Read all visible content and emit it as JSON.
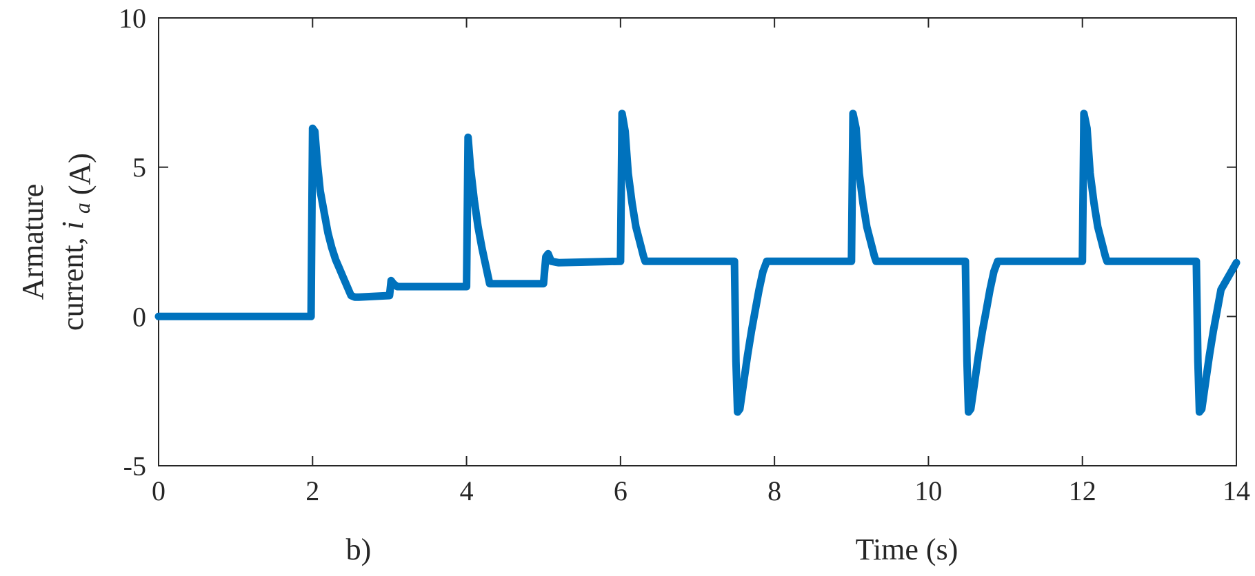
{
  "chart_data": {
    "type": "line",
    "panel_label": "b)",
    "title": "",
    "xlabel": "Time (s)",
    "ylabel_line1": "Armature",
    "ylabel_line2_prefix": "current,",
    "ylabel_var": "i",
    "ylabel_sub": "a",
    "ylabel_unit": "(A)",
    "xlim": [
      0,
      14
    ],
    "ylim": [
      -5,
      10
    ],
    "xticks": [
      0,
      2,
      4,
      6,
      8,
      10,
      12,
      14
    ],
    "yticks": [
      -5,
      0,
      5,
      10
    ],
    "xtick_labels": [
      "0",
      "2",
      "4",
      "6",
      "8",
      "10",
      "12",
      "14"
    ],
    "ytick_labels": [
      "-5",
      "0",
      "5",
      "10"
    ],
    "grid": false,
    "line_color": "#0072BD",
    "series": [
      {
        "x": [
          0,
          1.98,
          2.0,
          2.03,
          2.06,
          2.1,
          2.15,
          2.2,
          2.25,
          2.3,
          2.35,
          2.4,
          2.45,
          2.5,
          2.55,
          2.6,
          3.0,
          3.02,
          3.05,
          3.1,
          4.0,
          4.02,
          4.05,
          4.1,
          4.15,
          4.2,
          4.25,
          4.3,
          4.4,
          5.0,
          5.03,
          5.06,
          5.1,
          5.2,
          6.0,
          6.02,
          6.06,
          6.1,
          6.15,
          6.2,
          6.25,
          6.3,
          6.32,
          6.4,
          7.48,
          7.5,
          7.52,
          7.55,
          7.6,
          7.65,
          7.7,
          7.75,
          7.8,
          7.85,
          7.9,
          9.0,
          9.02,
          9.06,
          9.1,
          9.15,
          9.2,
          9.25,
          9.3,
          9.32,
          9.4,
          10.48,
          10.5,
          10.52,
          10.55,
          10.6,
          10.65,
          10.7,
          10.75,
          10.8,
          10.85,
          10.9,
          12.0,
          12.02,
          12.06,
          12.1,
          12.15,
          12.2,
          12.25,
          12.3,
          12.32,
          12.4,
          13.48,
          13.5,
          13.52,
          13.55,
          13.6,
          13.65,
          13.7,
          13.75,
          13.8,
          14.0
        ],
        "y": [
          0,
          0,
          6.3,
          6.2,
          5.2,
          4.2,
          3.5,
          2.8,
          2.3,
          1.9,
          1.6,
          1.3,
          1.0,
          0.7,
          0.65,
          0.65,
          0.7,
          1.2,
          1.1,
          1.0,
          1.0,
          6.0,
          5.0,
          3.9,
          3.0,
          2.3,
          1.7,
          1.1,
          1.1,
          1.1,
          2.0,
          2.1,
          1.85,
          1.8,
          1.85,
          6.8,
          6.2,
          4.8,
          3.8,
          3.0,
          2.5,
          2.0,
          1.85,
          1.85,
          1.85,
          -1.5,
          -3.2,
          -3.1,
          -2.2,
          -1.3,
          -0.5,
          0.2,
          0.9,
          1.5,
          1.85,
          1.85,
          6.8,
          6.3,
          4.8,
          3.8,
          3.0,
          2.5,
          2.0,
          1.85,
          1.85,
          1.85,
          -1.5,
          -3.2,
          -3.1,
          -2.2,
          -1.3,
          -0.5,
          0.2,
          0.9,
          1.5,
          1.85,
          1.85,
          6.8,
          6.3,
          4.8,
          3.8,
          3.0,
          2.5,
          2.0,
          1.85,
          1.85,
          1.85,
          -1.5,
          -3.2,
          -3.1,
          -2.2,
          -1.3,
          -0.5,
          0.2,
          0.9,
          1.8
        ]
      }
    ]
  }
}
